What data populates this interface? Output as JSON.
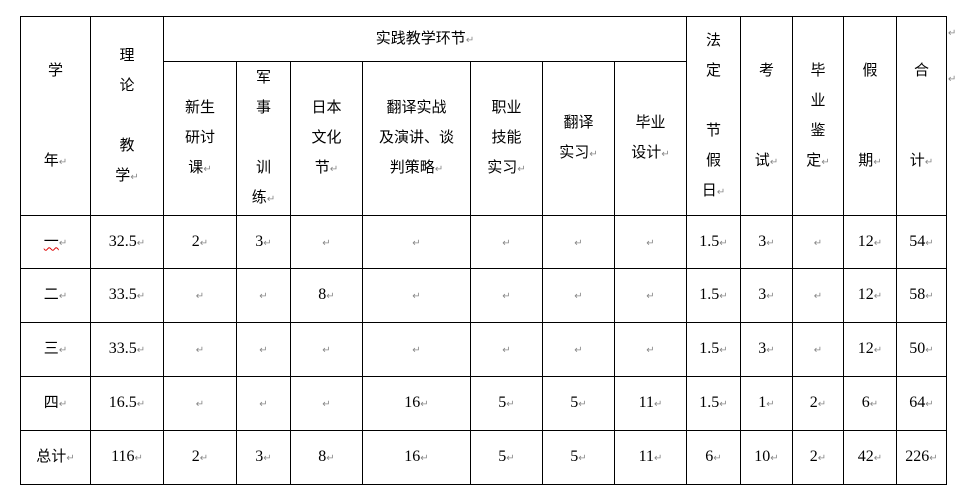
{
  "header": {
    "year": "学\n\n\n年",
    "theory": "理\n论\n\n教\n学",
    "practice_group": "实践教学环节",
    "practice_items": [
      "新生\n研讨\n课",
      "军\n事\n\n训\n练",
      "日本\n文化\n节",
      "翻译实战\n及演讲、谈\n判策略",
      "职业\n技能\n实习",
      "翻译\n实习",
      "毕业\n设计"
    ],
    "holiday_legal": "法\n定\n\n节\n假\n日",
    "exam": "考\n\n\n试",
    "graduation_review": "毕\n业\n鉴\n定",
    "vacation": "假\n\n\n期",
    "total": "合\n\n\n计"
  },
  "rows": [
    {
      "year": "一",
      "cells": [
        "32.5",
        "2",
        "3",
        "",
        "",
        "",
        "",
        "",
        "1.5",
        "3",
        "",
        "12",
        "54"
      ]
    },
    {
      "year": "二",
      "cells": [
        "33.5",
        "",
        "",
        "8",
        "",
        "",
        "",
        "",
        "1.5",
        "3",
        "",
        "12",
        "58"
      ]
    },
    {
      "year": "三",
      "cells": [
        "33.5",
        "",
        "",
        "",
        "",
        "",
        "",
        "",
        "1.5",
        "3",
        "",
        "12",
        "50"
      ]
    },
    {
      "year": "四",
      "cells": [
        "16.5",
        "",
        "",
        "",
        "16",
        "5",
        "5",
        "11",
        "1.5",
        "1",
        "2",
        "6",
        "64"
      ]
    },
    {
      "year": "总计",
      "cells": [
        "116",
        "2",
        "3",
        "8",
        "16",
        "5",
        "5",
        "11",
        "6",
        "10",
        "2",
        "42",
        "226"
      ]
    }
  ]
}
